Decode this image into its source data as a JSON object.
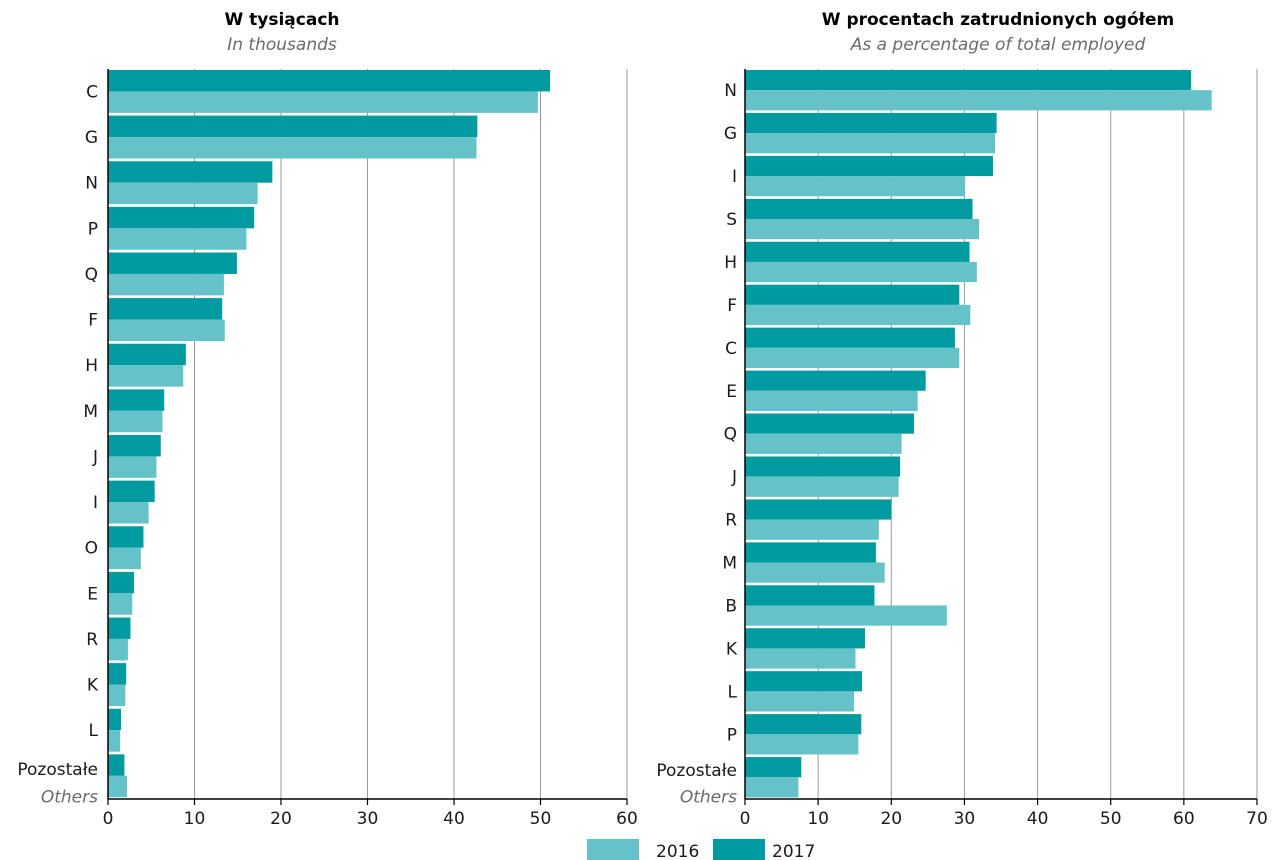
{
  "colors": {
    "2016": "#66c2c9",
    "2017": "#009ba1",
    "grid": "#9a9a9a",
    "axis": "#000000"
  },
  "legend": [
    {
      "label": "2016",
      "color": "#66c2c9"
    },
    {
      "label": "2017",
      "color": "#009ba1"
    }
  ],
  "chart_data": [
    {
      "type": "bar",
      "orientation": "horizontal",
      "title": "W tysiącach",
      "subtitle": "In thousands",
      "categories": [
        "C",
        "G",
        "N",
        "P",
        "Q",
        "F",
        "H",
        "M",
        "J",
        "I",
        "O",
        "E",
        "R",
        "K",
        "L",
        "Pozostałe"
      ],
      "category_second_line": {
        "Pozostałe": "Others"
      },
      "series": [
        {
          "name": "2017",
          "values": [
            51.1,
            42.7,
            19.0,
            16.9,
            14.9,
            13.2,
            9.0,
            6.5,
            6.1,
            5.4,
            4.1,
            3.0,
            2.6,
            2.1,
            1.5,
            1.9
          ]
        },
        {
          "name": "2016",
          "values": [
            49.7,
            42.6,
            17.3,
            16.0,
            13.4,
            13.5,
            8.7,
            6.3,
            5.6,
            4.7,
            3.8,
            2.8,
            2.3,
            2.0,
            1.4,
            2.2
          ]
        }
      ],
      "xlim": [
        0,
        60
      ],
      "xticks": [
        0,
        10,
        20,
        30,
        40,
        50,
        60
      ],
      "grid": true
    },
    {
      "type": "bar",
      "orientation": "horizontal",
      "title": "W procentach zatrudnionych ogółem",
      "subtitle": "As a percentage of total employed",
      "categories": [
        "N",
        "G",
        "I",
        "S",
        "H",
        "F",
        "C",
        "E",
        "Q",
        "J",
        "R",
        "M",
        "B",
        "K",
        "L",
        "P",
        "Pozostałe"
      ],
      "category_second_line": {
        "Pozostałe": "Others"
      },
      "series": [
        {
          "name": "2017",
          "values": [
            61.0,
            34.4,
            33.9,
            31.1,
            30.7,
            29.3,
            28.7,
            24.7,
            23.1,
            21.2,
            20.0,
            17.9,
            17.7,
            16.4,
            16.0,
            15.9,
            7.7
          ]
        },
        {
          "name": "2016",
          "values": [
            63.8,
            34.2,
            30.1,
            32.0,
            31.7,
            30.8,
            29.3,
            23.6,
            21.4,
            21.0,
            18.3,
            19.1,
            27.6,
            15.1,
            14.9,
            15.5,
            7.3
          ]
        }
      ],
      "xlim": [
        0,
        70
      ],
      "xticks": [
        0,
        10,
        20,
        30,
        40,
        50,
        60,
        70
      ],
      "grid": true
    }
  ]
}
